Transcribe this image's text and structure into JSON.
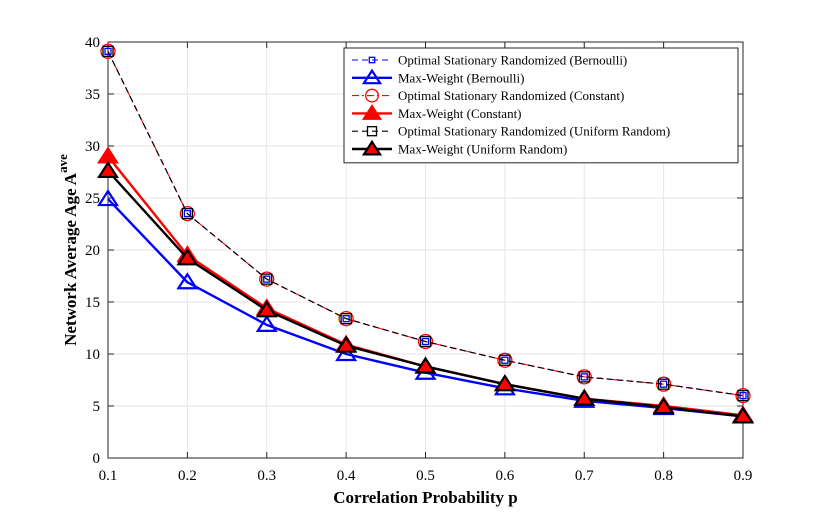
{
  "chart_data": {
    "type": "line",
    "title": "",
    "xlabel": "Correlation Probability p",
    "ylabel": "Network Average Age A",
    "ylabel_superscript": "ave",
    "xlim": [
      0.1,
      0.9
    ],
    "ylim": [
      0,
      40
    ],
    "grid": true,
    "legend_position": "top-right",
    "x": [
      0.1,
      0.2,
      0.3,
      0.4,
      0.5,
      0.6,
      0.7,
      0.8,
      0.9
    ],
    "x_tick_labels": [
      "0.1",
      "0.2",
      "0.3",
      "0.4",
      "0.5",
      "0.6",
      "0.7",
      "0.8",
      "0.9"
    ],
    "y_ticks": [
      0,
      5,
      10,
      15,
      20,
      25,
      30,
      35,
      40
    ],
    "y_tick_labels": [
      "0",
      "5",
      "10",
      "15",
      "20",
      "25",
      "30",
      "35",
      "40"
    ],
    "series": [
      {
        "name": "Optimal Stationary Randomized (Bernoulli)",
        "values": [
          39.1,
          23.5,
          17.2,
          13.4,
          11.2,
          9.4,
          7.8,
          7.1,
          6.0
        ],
        "color": "#0000ff",
        "dash": "dashed",
        "marker": "square-dot",
        "marker_filled": false
      },
      {
        "name": "Max-Weight (Bernoulli)",
        "values": [
          24.9,
          16.9,
          12.8,
          10.0,
          8.2,
          6.7,
          5.5,
          4.8,
          4.0
        ],
        "color": "#0000ff",
        "dash": "solid",
        "marker": "triangle",
        "marker_filled": false
      },
      {
        "name": "Optimal Stationary Randomized (Constant)",
        "values": [
          39.1,
          23.5,
          17.2,
          13.4,
          11.2,
          9.4,
          7.8,
          7.1,
          6.0
        ],
        "color": "#ff0000",
        "dash": "dashdot",
        "marker": "circle",
        "marker_filled": false
      },
      {
        "name": "Max-Weight (Constant)",
        "values": [
          29.0,
          19.5,
          14.4,
          10.9,
          8.8,
          7.1,
          5.7,
          5.0,
          4.1
        ],
        "color": "#ff0000",
        "dash": "solid",
        "marker": "triangle",
        "marker_filled": true
      },
      {
        "name": "Optimal Stationary Randomized (Uniform Random)",
        "values": [
          39.1,
          23.5,
          17.2,
          13.4,
          11.2,
          9.4,
          7.8,
          7.1,
          6.0
        ],
        "color": "#000000",
        "dash": "dashed",
        "marker": "square",
        "marker_filled": false
      },
      {
        "name": "Max-Weight (Uniform Random)",
        "values": [
          27.6,
          19.2,
          14.2,
          10.8,
          8.8,
          7.1,
          5.7,
          4.9,
          4.0
        ],
        "color": "#000000",
        "dash": "solid",
        "marker": "triangle",
        "marker_filled": true,
        "marker_fill": "#ff0000"
      }
    ]
  }
}
